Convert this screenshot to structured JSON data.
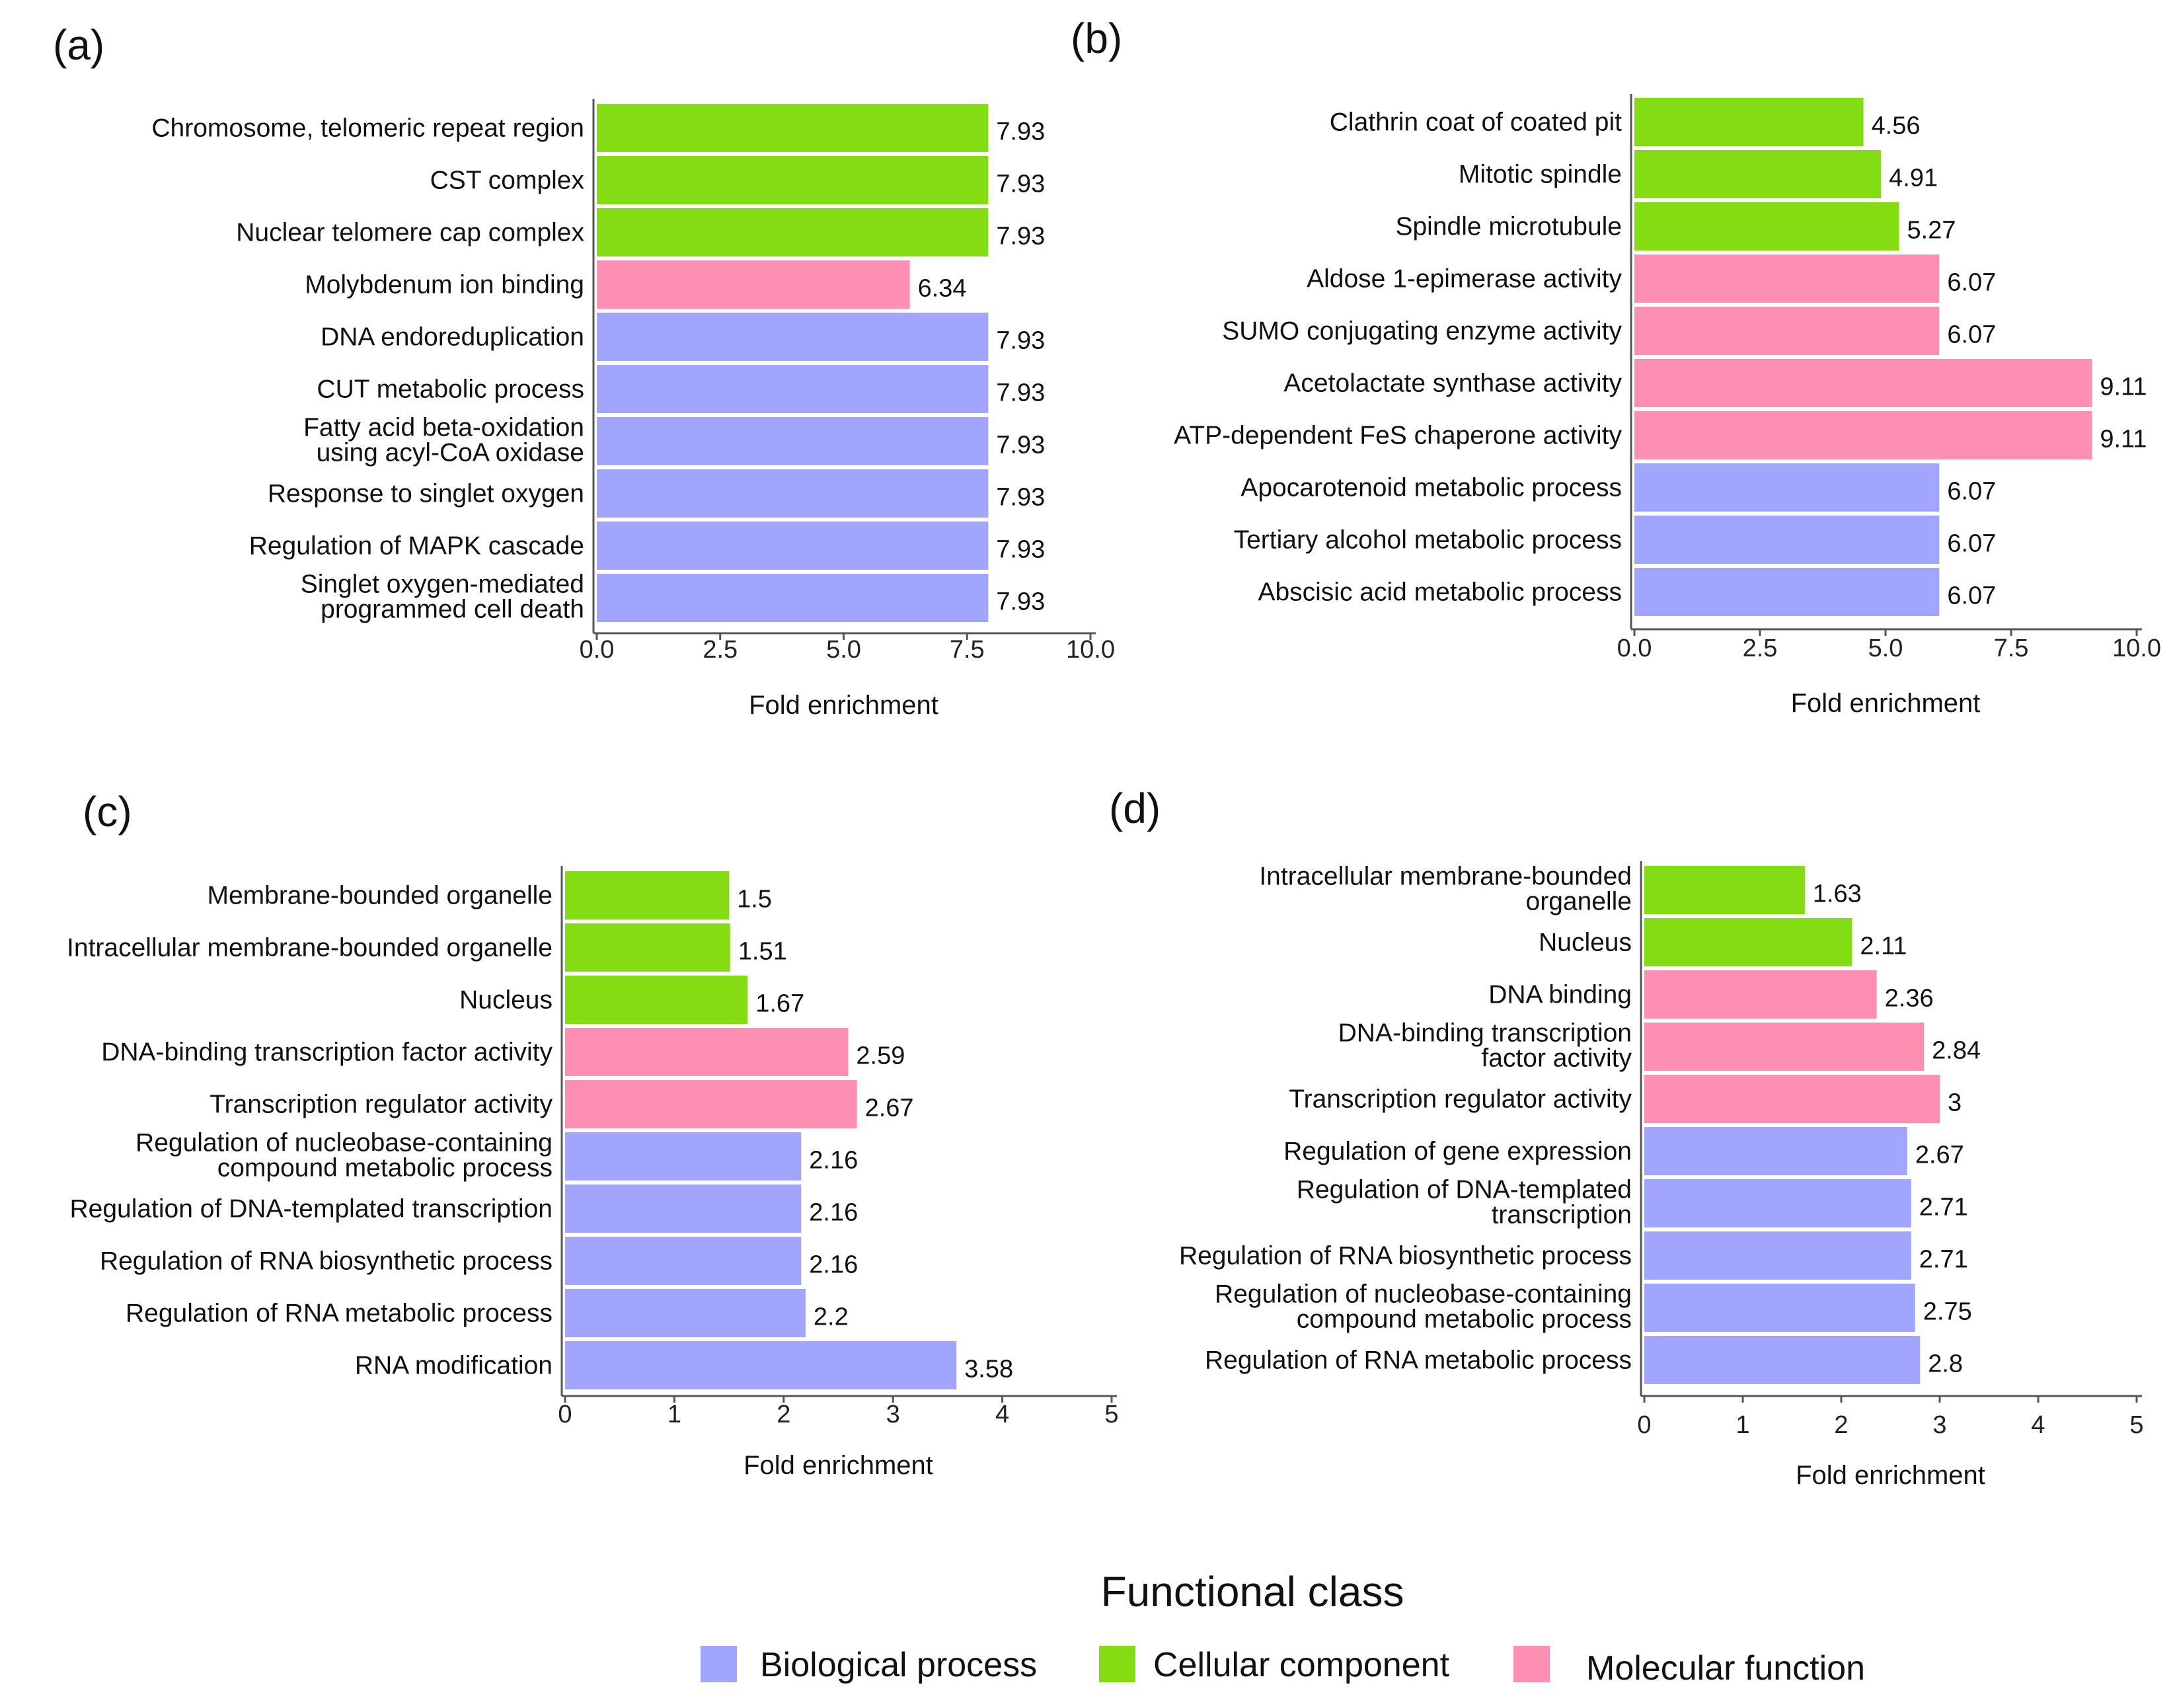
{
  "colors": {
    "Biological process": "#a1a5fd",
    "Cellular component": "#84dc12",
    "Molecular function": "#fd8fb3"
  },
  "legend": {
    "title": "Functional class",
    "items": [
      "Biological process",
      "Cellular component",
      "Molecular function"
    ]
  },
  "chart_data": [
    {
      "type": "bar",
      "orientation": "horizontal",
      "panel": "(a)",
      "xlabel": "Fold enrichment",
      "xlim": [
        0,
        10
      ],
      "xticks": [
        "0.0",
        "2.5",
        "5.0",
        "7.5",
        "10.0"
      ],
      "xtick_values": [
        0,
        2.5,
        5,
        7.5,
        10
      ],
      "categories": [
        "Chromosome, telomeric repeat region",
        "CST complex",
        "Nuclear telomere cap complex",
        "Molybdenum ion binding",
        "DNA endoreduplication",
        "CUT metabolic process",
        "Fatty acid beta-oxidation\nusing acyl-CoA oxidase",
        "Response to singlet oxygen",
        "Regulation of MAPK cascade",
        "Singlet oxygen-mediated\nprogrammed cell death"
      ],
      "values": [
        7.93,
        7.93,
        7.93,
        6.34,
        7.93,
        7.93,
        7.93,
        7.93,
        7.93,
        7.93
      ],
      "value_labels": [
        "7.93",
        "7.93",
        "7.93",
        "6.34",
        "7.93",
        "7.93",
        "7.93",
        "7.93",
        "7.93",
        "7.93"
      ],
      "classes": [
        "Cellular component",
        "Cellular component",
        "Cellular component",
        "Molecular function",
        "Biological process",
        "Biological process",
        "Biological process",
        "Biological process",
        "Biological process",
        "Biological process"
      ]
    },
    {
      "type": "bar",
      "orientation": "horizontal",
      "panel": "(b)",
      "xlabel": "Fold enrichment",
      "xlim": [
        0,
        10
      ],
      "xticks": [
        "0.0",
        "2.5",
        "5.0",
        "7.5",
        "10.0"
      ],
      "xtick_values": [
        0,
        2.5,
        5,
        7.5,
        10
      ],
      "categories": [
        "Clathrin coat of coated pit",
        "Mitotic spindle",
        "Spindle microtubule",
        "Aldose 1-epimerase activity",
        "SUMO conjugating enzyme activity",
        "Acetolactate synthase activity",
        "ATP-dependent FeS chaperone activity",
        "Apocarotenoid metabolic process",
        "Tertiary alcohol metabolic process",
        "Abscisic acid metabolic process"
      ],
      "values": [
        4.56,
        4.91,
        5.27,
        6.07,
        6.07,
        9.11,
        9.11,
        6.07,
        6.07,
        6.07
      ],
      "value_labels": [
        "4.56",
        "4.91",
        "5.27",
        "6.07",
        "6.07",
        "9.11",
        "9.11",
        "6.07",
        "6.07",
        "6.07"
      ],
      "classes": [
        "Cellular component",
        "Cellular component",
        "Cellular component",
        "Molecular function",
        "Molecular function",
        "Molecular function",
        "Molecular function",
        "Biological process",
        "Biological process",
        "Biological process"
      ]
    },
    {
      "type": "bar",
      "orientation": "horizontal",
      "panel": "(c)",
      "xlabel": "Fold enrichment",
      "xlim": [
        0,
        5
      ],
      "xticks": [
        "0",
        "1",
        "2",
        "3",
        "4",
        "5"
      ],
      "xtick_values": [
        0,
        1,
        2,
        3,
        4,
        5
      ],
      "categories": [
        "Membrane-bounded organelle",
        "Intracellular membrane-bounded organelle",
        "Nucleus",
        "DNA-binding transcription factor activity",
        "Transcription regulator activity",
        "Regulation of nucleobase-containing\ncompound metabolic process",
        "Regulation of DNA-templated transcription",
        "Regulation of RNA biosynthetic process",
        "Regulation of RNA metabolic process",
        "RNA modification"
      ],
      "values": [
        1.5,
        1.51,
        1.67,
        2.59,
        2.67,
        2.16,
        2.16,
        2.16,
        2.2,
        3.58
      ],
      "value_labels": [
        "1.5",
        "1.51",
        "1.67",
        "2.59",
        "2.67",
        "2.16",
        "2.16",
        "2.16",
        "2.2",
        "3.58"
      ],
      "classes": [
        "Cellular component",
        "Cellular component",
        "Cellular component",
        "Molecular function",
        "Molecular function",
        "Biological process",
        "Biological process",
        "Biological process",
        "Biological process",
        "Biological process"
      ]
    },
    {
      "type": "bar",
      "orientation": "horizontal",
      "panel": "(d)",
      "xlabel": "Fold enrichment",
      "xlim": [
        0,
        5
      ],
      "xticks": [
        "0",
        "1",
        "2",
        "3",
        "4",
        "5"
      ],
      "xtick_values": [
        0,
        1,
        2,
        3,
        4,
        5
      ],
      "categories": [
        "Intracellular membrane-bounded\norganelle",
        "Nucleus",
        "DNA binding",
        "DNA-binding transcription\nfactor activity",
        "Transcription regulator activity",
        "Regulation of gene expression",
        "Regulation of DNA-templated\ntranscription",
        "Regulation of RNA biosynthetic process",
        "Regulation of nucleobase-containing\ncompound metabolic process",
        "Regulation of RNA metabolic process"
      ],
      "values": [
        1.63,
        2.11,
        2.36,
        2.84,
        3,
        2.67,
        2.71,
        2.71,
        2.75,
        2.8
      ],
      "value_labels": [
        "1.63",
        "2.11",
        "2.36",
        "2.84",
        "3",
        "2.67",
        "2.71",
        "2.71",
        "2.75",
        "2.8"
      ],
      "classes": [
        "Cellular component",
        "Cellular component",
        "Molecular function",
        "Molecular function",
        "Molecular function",
        "Biological process",
        "Biological process",
        "Biological process",
        "Biological process",
        "Biological process"
      ]
    }
  ]
}
